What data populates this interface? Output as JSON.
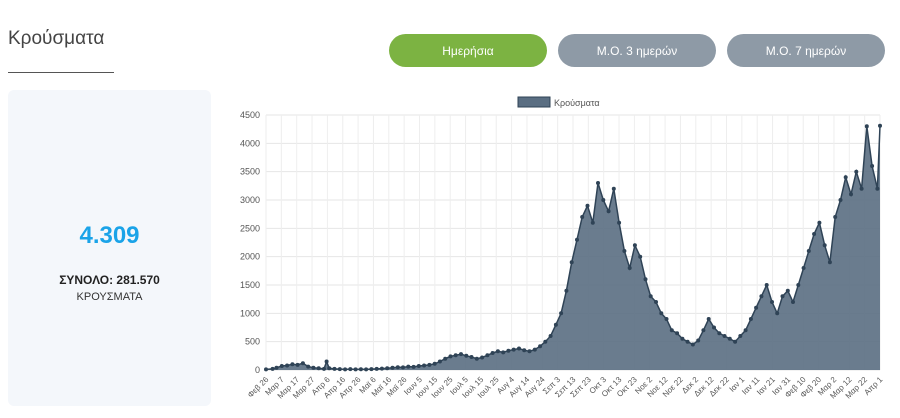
{
  "page": {
    "title": "Κρούσματα",
    "tabs": [
      {
        "label": "Ημερήσια",
        "active": true
      },
      {
        "label": "Μ.Ο. 3 ημερών",
        "active": false
      },
      {
        "label": "Μ.Ο. 7 ημερών",
        "active": false
      }
    ],
    "stat": {
      "value": "4.309",
      "total": "ΣΥΝΟΛΟ: 281.570",
      "unit": "ΚΡΟΥΣΜΑΤΑ"
    }
  },
  "colors": {
    "active_tab": "#7cb342",
    "inactive_tab": "#8e9aa6",
    "stat_value": "#1aa3e8",
    "series_fill": "#5a6e82",
    "series_line": "#2f4356"
  },
  "chart_data": {
    "type": "area",
    "title": "",
    "legend": {
      "label": "Κρούσματα",
      "position": "top"
    },
    "grid": true,
    "ylim": [
      0,
      4500
    ],
    "yticks": [
      0,
      500,
      1000,
      1500,
      2000,
      2500,
      3000,
      3500,
      4000,
      4500
    ],
    "xtick_labels": [
      "Φεβ 26",
      "Μαρ 7",
      "Μαρ 17",
      "Μαρ 27",
      "Απρ 6",
      "Απρ 16",
      "Απρ 26",
      "Μαϊ 6",
      "Μαϊ 16",
      "Μαϊ 26",
      "Ιουν 5",
      "Ιουν 15",
      "Ιουν 25",
      "Ιουλ 5",
      "Ιουλ 15",
      "Ιουλ 25",
      "Αυγ 4",
      "Αυγ 14",
      "Αυγ 24",
      "Σεπ 3",
      "Σεπ 13",
      "Σεπ 23",
      "Οκτ 3",
      "Οκτ 13",
      "Οκτ 23",
      "Νοε 2",
      "Νοε 12",
      "Νοε 22",
      "Δεκ 2",
      "Δεκ 12",
      "Δεκ 22",
      "Ιαν 1",
      "Ιαν 11",
      "Ιαν 21",
      "Ιαν 31",
      "Φεβ 10",
      "Φεβ 20",
      "Μαρ 2",
      "Μαρ 12",
      "Μαρ 22",
      "Απρ 1"
    ],
    "series": [
      {
        "name": "Κρούσματα",
        "keypoints": [
          [
            0,
            10
          ],
          [
            5,
            20
          ],
          [
            8,
            40
          ],
          [
            12,
            70
          ],
          [
            16,
            80
          ],
          [
            20,
            100
          ],
          [
            24,
            90
          ],
          [
            28,
            120
          ],
          [
            32,
            60
          ],
          [
            36,
            40
          ],
          [
            40,
            30
          ],
          [
            44,
            20
          ],
          [
            46,
            150
          ],
          [
            48,
            30
          ],
          [
            52,
            20
          ],
          [
            56,
            15
          ],
          [
            60,
            10
          ],
          [
            64,
            15
          ],
          [
            68,
            10
          ],
          [
            72,
            12
          ],
          [
            76,
            10
          ],
          [
            80,
            15
          ],
          [
            84,
            20
          ],
          [
            88,
            25
          ],
          [
            92,
            30
          ],
          [
            96,
            40
          ],
          [
            100,
            50
          ],
          [
            104,
            45
          ],
          [
            108,
            60
          ],
          [
            112,
            55
          ],
          [
            116,
            70
          ],
          [
            120,
            80
          ],
          [
            124,
            90
          ],
          [
            128,
            110
          ],
          [
            132,
            150
          ],
          [
            136,
            200
          ],
          [
            140,
            240
          ],
          [
            144,
            260
          ],
          [
            148,
            280
          ],
          [
            152,
            250
          ],
          [
            156,
            230
          ],
          [
            160,
            200
          ],
          [
            164,
            220
          ],
          [
            168,
            260
          ],
          [
            172,
            300
          ],
          [
            176,
            330
          ],
          [
            180,
            310
          ],
          [
            184,
            340
          ],
          [
            188,
            360
          ],
          [
            192,
            380
          ],
          [
            196,
            350
          ],
          [
            200,
            330
          ],
          [
            204,
            360
          ],
          [
            208,
            420
          ],
          [
            212,
            500
          ],
          [
            216,
            600
          ],
          [
            220,
            800
          ],
          [
            224,
            1000
          ],
          [
            228,
            1400
          ],
          [
            232,
            1900
          ],
          [
            236,
            2300
          ],
          [
            240,
            2700
          ],
          [
            244,
            2900
          ],
          [
            248,
            2600
          ],
          [
            252,
            3300
          ],
          [
            256,
            3000
          ],
          [
            260,
            2800
          ],
          [
            264,
            3200
          ],
          [
            268,
            2600
          ],
          [
            272,
            2100
          ],
          [
            276,
            1800
          ],
          [
            280,
            2200
          ],
          [
            284,
            2000
          ],
          [
            288,
            1600
          ],
          [
            292,
            1300
          ],
          [
            296,
            1200
          ],
          [
            300,
            1000
          ],
          [
            304,
            900
          ],
          [
            308,
            700
          ],
          [
            312,
            650
          ],
          [
            316,
            550
          ],
          [
            320,
            500
          ],
          [
            324,
            450
          ],
          [
            328,
            520
          ],
          [
            332,
            700
          ],
          [
            336,
            900
          ],
          [
            340,
            750
          ],
          [
            344,
            650
          ],
          [
            348,
            600
          ],
          [
            352,
            550
          ],
          [
            356,
            500
          ],
          [
            360,
            600
          ],
          [
            364,
            700
          ],
          [
            368,
            900
          ],
          [
            372,
            1100
          ],
          [
            376,
            1300
          ],
          [
            380,
            1500
          ],
          [
            384,
            1200
          ],
          [
            388,
            1000
          ],
          [
            392,
            1300
          ],
          [
            396,
            1400
          ],
          [
            400,
            1200
          ],
          [
            404,
            1500
          ],
          [
            408,
            1800
          ],
          [
            412,
            2100
          ],
          [
            416,
            2400
          ],
          [
            420,
            2600
          ],
          [
            424,
            2200
          ],
          [
            428,
            1900
          ],
          [
            432,
            2700
          ],
          [
            436,
            3000
          ],
          [
            440,
            3400
          ],
          [
            444,
            3100
          ],
          [
            448,
            3500
          ],
          [
            452,
            3200
          ],
          [
            456,
            4300
          ],
          [
            460,
            3600
          ],
          [
            464,
            3200
          ],
          [
            466,
            4309
          ]
        ]
      }
    ]
  }
}
